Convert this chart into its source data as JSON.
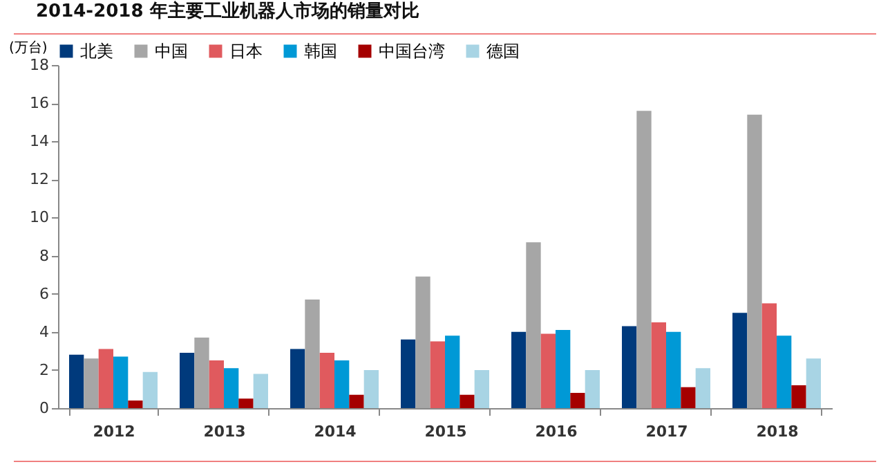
{
  "chart_data": {
    "type": "bar",
    "title": "2014-2018 年主要工业机器人市场的销量对比",
    "ylabel": "(万台)",
    "categories": [
      "2012",
      "2013",
      "2014",
      "2015",
      "2016",
      "2017",
      "2018"
    ],
    "series": [
      {
        "name": "北美",
        "color": "#003a7c",
        "values": [
          2.8,
          2.9,
          3.1,
          3.6,
          4.0,
          4.3,
          5.0
        ]
      },
      {
        "name": "中国",
        "color": "#a6a6a6",
        "values": [
          2.6,
          3.7,
          5.7,
          6.9,
          8.7,
          15.6,
          15.4
        ]
      },
      {
        "name": "日本",
        "color": "#e05a5e",
        "values": [
          3.1,
          2.5,
          2.9,
          3.5,
          3.9,
          4.5,
          5.5
        ]
      },
      {
        "name": "韩国",
        "color": "#0099d6",
        "values": [
          2.7,
          2.1,
          2.5,
          3.8,
          4.1,
          4.0,
          3.8
        ]
      },
      {
        "name": "中国台湾",
        "color": "#a50000",
        "values": [
          0.4,
          0.5,
          0.7,
          0.7,
          0.8,
          1.1,
          1.2
        ]
      },
      {
        "name": "德国",
        "color": "#a8d4e4",
        "values": [
          1.9,
          1.8,
          2.0,
          2.0,
          2.0,
          2.1,
          2.6
        ]
      }
    ],
    "ylim": [
      0,
      18
    ],
    "yticks": [
      0,
      2,
      4,
      6,
      8,
      10,
      12,
      14,
      16,
      18
    ],
    "grid": false,
    "legend": "top"
  }
}
